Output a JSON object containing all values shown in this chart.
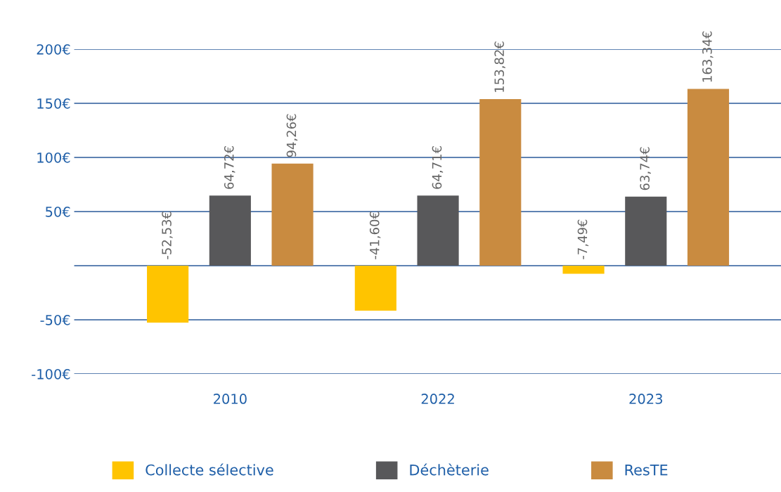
{
  "chart_data": {
    "type": "bar",
    "categories": [
      "2010",
      "2022",
      "2023"
    ],
    "series": [
      {
        "name": "Collecte sélective",
        "color": "#ffc400",
        "values": [
          -52.53,
          -41.6,
          -7.49
        ],
        "value_labels": [
          "-52,53€",
          "-41,60€",
          "-7,49€"
        ]
      },
      {
        "name": "Déchèterie",
        "color": "#58585a",
        "values": [
          64.72,
          64.71,
          63.74
        ],
        "value_labels": [
          "64,72€",
          "64,71€",
          "63,74€"
        ]
      },
      {
        "name": "ResTE",
        "color": "#c98b40",
        "values": [
          94.26,
          153.82,
          163.34
        ],
        "value_labels": [
          "94,26€",
          "153,82€",
          "163,34€"
        ]
      }
    ],
    "ylim": [
      -100,
      200
    ],
    "yticks": [
      {
        "value": -100,
        "label": "-100€"
      },
      {
        "value": -50,
        "label": "-50€"
      },
      {
        "value": 0,
        "label": null
      },
      {
        "value": 50,
        "label": "50€"
      },
      {
        "value": 100,
        "label": "100€"
      },
      {
        "value": 150,
        "label": "150€"
      },
      {
        "value": 200,
        "label": "200€"
      }
    ],
    "grid": "y",
    "legend": "bottom"
  }
}
